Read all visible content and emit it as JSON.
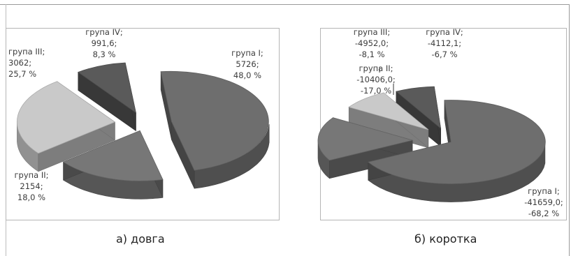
{
  "chart_data": [
    {
      "type": "pie",
      "caption": "а) довга",
      "slices": [
        {
          "label_lines": [
            "група I;",
            "5726;",
            "48,0 %"
          ],
          "value": 5726,
          "percent": 48.0,
          "color": "#6e6e6e"
        },
        {
          "label_lines": [
            "група II;",
            "2154;",
            "18,0 %"
          ],
          "value": 2154,
          "percent": 18.0,
          "color": "#777777"
        },
        {
          "label_lines": [
            "група III;",
            "3062;",
            "25,7 %"
          ],
          "value": 3062,
          "percent": 25.7,
          "color": "#c9c9c9"
        },
        {
          "label_lines": [
            "група IV;",
            "991,6;",
            "8,3 %"
          ],
          "value": 991.6,
          "percent": 8.3,
          "color": "#5a5a5a"
        }
      ]
    },
    {
      "type": "pie",
      "caption": "б) коротка",
      "slices": [
        {
          "label_lines": [
            "група I;",
            "-41659,0;",
            "-68,2 %"
          ],
          "value": -41659.0,
          "percent": -68.2,
          "color": "#6e6e6e"
        },
        {
          "label_lines": [
            "група II;",
            "-10406,0;",
            "-17,0 %"
          ],
          "value": -10406.0,
          "percent": -17.0,
          "color": "#777777"
        },
        {
          "label_lines": [
            "група III;",
            "-4952,0;",
            "-8,1 %"
          ],
          "value": -4952.0,
          "percent": -8.1,
          "color": "#c9c9c9"
        },
        {
          "label_lines": [
            "група IV;",
            "-4112,1;",
            "-6,7 %"
          ],
          "value": -4112.1,
          "percent": -6.7,
          "color": "#5a5a5a"
        }
      ]
    }
  ]
}
